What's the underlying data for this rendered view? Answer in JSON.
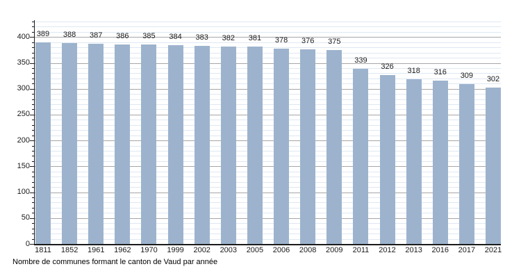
{
  "chart_data": {
    "type": "bar",
    "caption": "Nombre de communes formant le canton de Vaud par année",
    "categories": [
      "1811",
      "1852",
      "1961",
      "1962",
      "1970",
      "1999",
      "2002",
      "2003",
      "2005",
      "2006",
      "2008",
      "2009",
      "2011",
      "2012",
      "2013",
      "2016",
      "2017",
      "2021"
    ],
    "values": [
      389,
      388,
      387,
      386,
      385,
      384,
      383,
      382,
      381,
      378,
      376,
      375,
      339,
      326,
      318,
      316,
      309,
      302
    ],
    "title": "",
    "xlabel": "",
    "ylabel": "",
    "ylim": [
      0,
      433
    ],
    "yticks_major": [
      0,
      50,
      100,
      150,
      200,
      250,
      300,
      350,
      400
    ],
    "minor_tick_step": 10,
    "grid": true,
    "legend": "none",
    "data_labels": true,
    "colors": {
      "bar": "#9db3cd",
      "major_grid": "#a6a6a6",
      "minor_grid": "#dfe8f2",
      "axis": "#1a1a1a",
      "text": "#1a1a1a"
    }
  }
}
